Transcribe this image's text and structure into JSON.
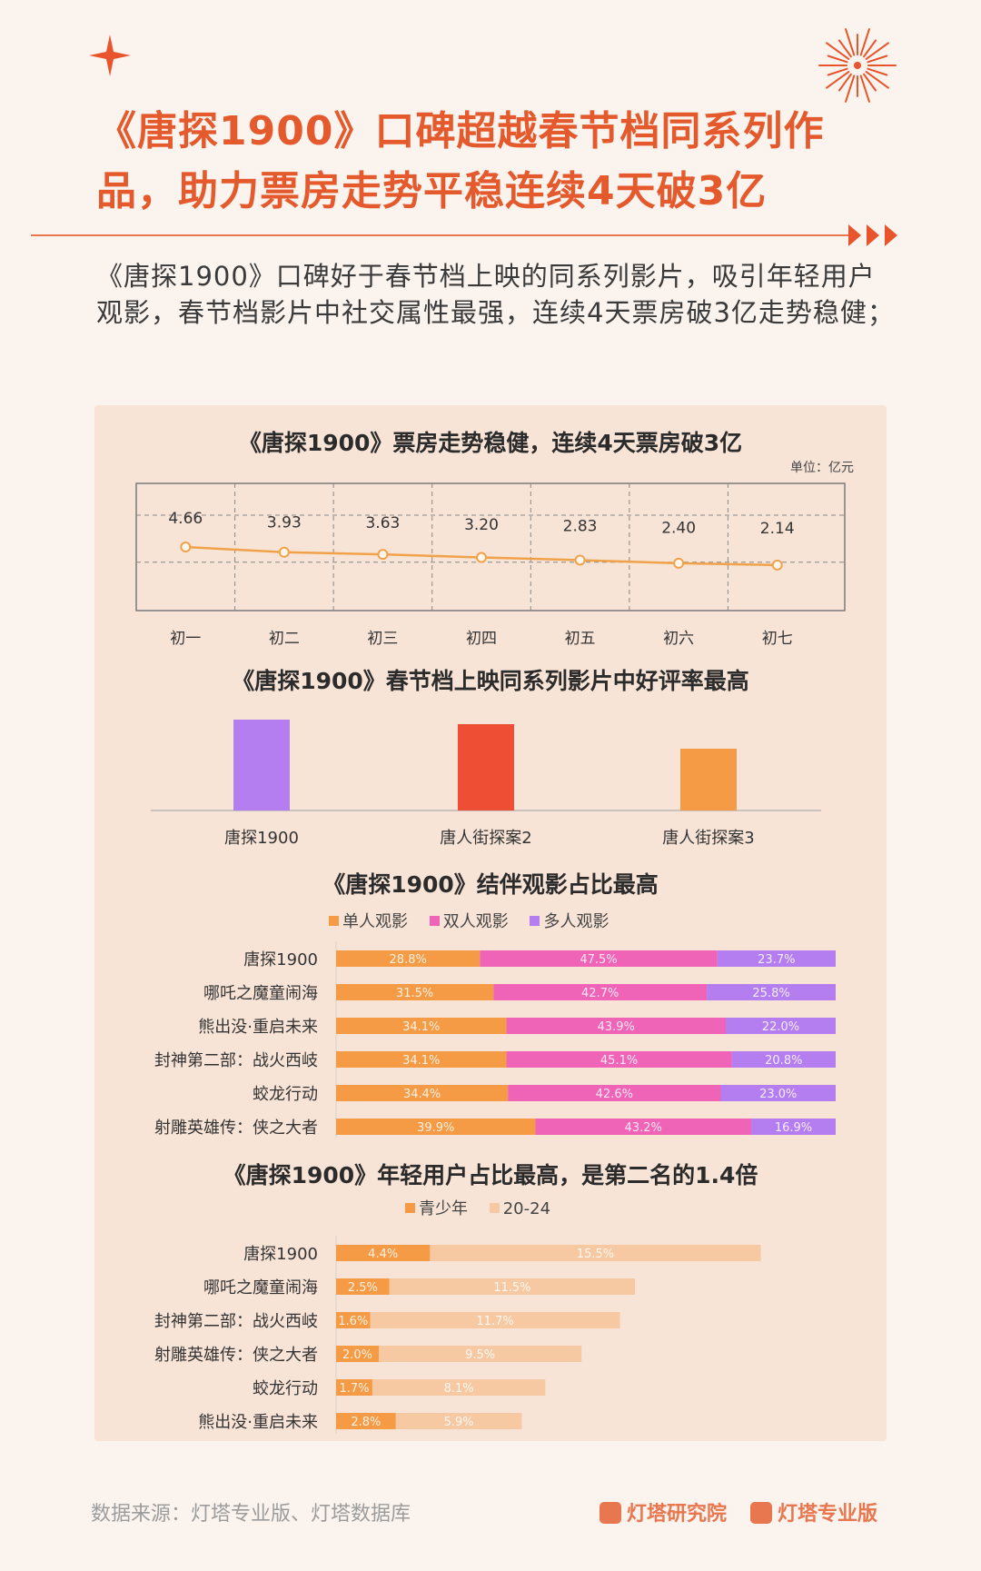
{
  "headline": "《唐探1900》口碑超越春节档同系列作品，助力票房走势平稳连续4天破3亿",
  "intro": "《唐探1900》口碑好于春节档上映的同系列影片，吸引年轻用户观影，春节档影片中社交属性最强，连续4天票房破3亿走势稳健；",
  "colors": {
    "accent": "#e45a2d",
    "line": "#f0a24b",
    "single": "#f59b45",
    "double": "#ef64b7",
    "multi": "#b47ef0",
    "teen": "#f59b45",
    "young": "#f6c9a3"
  },
  "icons": [
    "sparkle-star-icon",
    "firework-burst-icon",
    "triple-arrow-icon",
    "dengta-research-logo-icon",
    "dengta-pro-logo-icon"
  ],
  "chart_data": [
    {
      "type": "line",
      "title": "《唐探1900》票房走势稳健，连续4天票房破3亿",
      "unit": "单位：亿元",
      "categories": [
        "初一",
        "初二",
        "初三",
        "初四",
        "初五",
        "初六",
        "初七"
      ],
      "values": [
        4.66,
        3.93,
        3.63,
        3.2,
        2.83,
        2.4,
        2.14
      ],
      "labels": [
        "4.66",
        "3.93",
        "3.63",
        "3.20",
        "2.83",
        "2.40",
        "2.14"
      ],
      "grid": true
    },
    {
      "type": "bar",
      "title": "《唐探1900》春节档上映同系列影片中好评率最高",
      "categories": [
        "唐探1900",
        "唐人街探案2",
        "唐人街探案3"
      ],
      "relative_values": [
        1.0,
        0.95,
        0.68
      ],
      "colors": [
        "#b47ef0",
        "#ee4e33",
        "#f59b45"
      ]
    },
    {
      "type": "bar",
      "orientation": "horizontal-stacked",
      "title": "《唐探1900》结伴观影占比最高",
      "legend": [
        "单人观影",
        "双人观影",
        "多人观影"
      ],
      "categories": [
        "唐探1900",
        "哪吒之魔童闹海",
        "熊出没·重启未来",
        "封神第二部：战火西岐",
        "蛟龙行动",
        "射雕英雄传：侠之大者"
      ],
      "series": [
        {
          "name": "单人观影",
          "values": [
            28.8,
            31.5,
            34.1,
            34.1,
            34.4,
            39.9
          ],
          "labels": [
            "28.8%",
            "31.5%",
            "34.1%",
            "34.1%",
            "34.4%",
            "39.9%"
          ]
        },
        {
          "name": "双人观影",
          "values": [
            47.5,
            42.7,
            43.9,
            45.1,
            42.6,
            43.2
          ],
          "labels": [
            "47.5%",
            "42.7%",
            "43.9%",
            "45.1%",
            "42.6%",
            "43.2%"
          ]
        },
        {
          "name": "多人观影",
          "values": [
            23.7,
            25.8,
            22.0,
            20.8,
            23.0,
            16.9
          ],
          "labels": [
            "23.7%",
            "25.8%",
            "22.0%",
            "20.8%",
            "23.0%",
            "16.9%"
          ]
        }
      ]
    },
    {
      "type": "bar",
      "orientation": "horizontal-stacked",
      "title": "《唐探1900》年轻用户占比最高，是第二名的1.4倍",
      "legend": [
        "青少年",
        "20-24"
      ],
      "categories": [
        "唐探1900",
        "哪吒之魔童闹海",
        "封神第二部：战火西岐",
        "射雕英雄传：侠之大者",
        "蛟龙行动",
        "熊出没·重启未来"
      ],
      "series": [
        {
          "name": "青少年",
          "values": [
            4.4,
            2.5,
            1.6,
            2.0,
            1.7,
            2.8
          ],
          "labels": [
            "4.4%",
            "2.5%",
            "1.6%",
            "2.0%",
            "1.7%",
            "2.8%"
          ]
        },
        {
          "name": "20-24",
          "values": [
            15.5,
            11.5,
            11.7,
            9.5,
            8.1,
            5.9
          ],
          "labels": [
            "15.5%",
            "11.5%",
            "11.7%",
            "9.5%",
            "8.1%",
            "5.9%"
          ]
        }
      ]
    }
  ],
  "footer": {
    "source": "数据来源：灯塔专业版、灯塔数据库",
    "brand1": "灯塔研究院",
    "brand2": "灯塔专业版"
  }
}
